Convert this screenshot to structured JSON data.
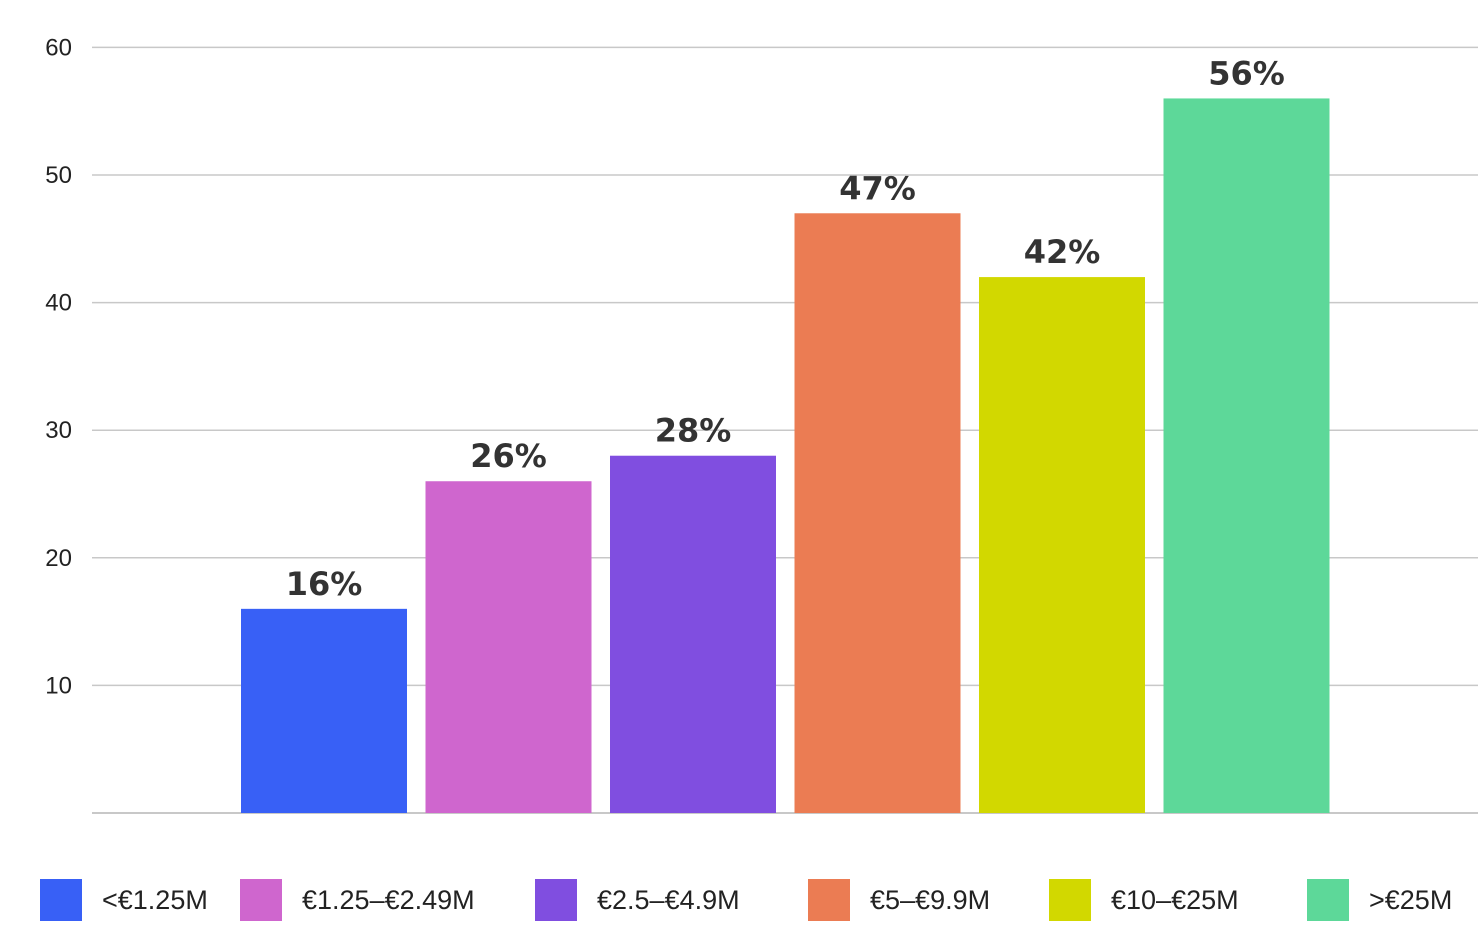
{
  "chart_data": {
    "type": "bar",
    "title": "",
    "xlabel": "",
    "ylabel": "",
    "ylim": [
      0,
      60
    ],
    "yticks": [
      10,
      20,
      30,
      40,
      50,
      60
    ],
    "grid": true,
    "legend_position": "bottom",
    "categories": [
      "<€1.25M",
      "€1.25–€2.49M",
      "€2.5–€4.9M",
      "€5–€9.9M",
      "€10–€25M",
      ">€25M"
    ],
    "values": [
      16,
      26,
      28,
      47,
      42,
      56
    ],
    "data_labels": [
      "16%",
      "26%",
      "28%",
      "47%",
      "42%",
      "56%"
    ],
    "colors": [
      "#3860F6",
      "#CF66CE",
      "#804EE0",
      "#EB7C53",
      "#D2D800",
      "#5DD899"
    ],
    "label_colors": [
      "#333333",
      "#333333",
      "#333333",
      "#333333",
      "#9A9A9A",
      "#333333"
    ]
  }
}
